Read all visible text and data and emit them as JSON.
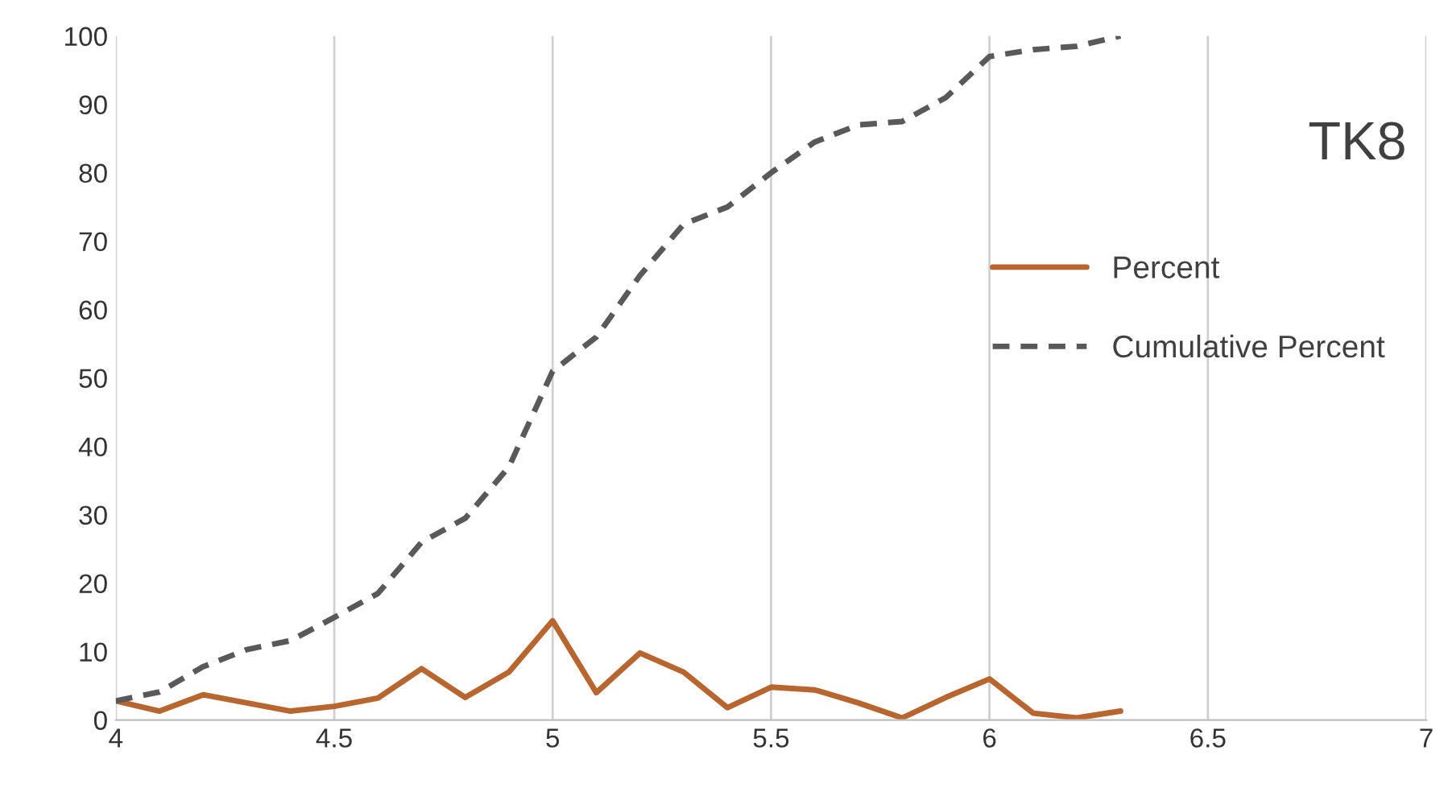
{
  "chart_data": {
    "type": "line",
    "x": [
      4.0,
      4.1,
      4.2,
      4.3,
      4.4,
      4.5,
      4.6,
      4.7,
      4.8,
      4.9,
      5.0,
      5.1,
      5.2,
      5.3,
      5.4,
      5.5,
      5.6,
      5.7,
      5.8,
      5.9,
      6.0,
      6.1,
      6.2,
      6.3
    ],
    "series": [
      {
        "name": "Percent",
        "color": "#b8652f",
        "marker": "none",
        "line_style": "solid",
        "values": [
          2.8,
          1.3,
          3.7,
          2.5,
          1.3,
          2.0,
          3.2,
          7.5,
          3.3,
          7.0,
          14.5,
          4.0,
          9.8,
          7.0,
          1.8,
          4.8,
          4.4,
          2.5,
          0.3,
          3.3,
          6.0,
          1.0,
          0.3,
          1.3
        ]
      },
      {
        "name": "Cumulative Percent",
        "color": "#595959",
        "marker": "none",
        "line_style": "dashed",
        "values": [
          2.8,
          4.1,
          7.8,
          10.3,
          11.6,
          15,
          18.5,
          26,
          29.5,
          37,
          51,
          56,
          65,
          72.5,
          75,
          80,
          84.5,
          87,
          87.5,
          91,
          97,
          98,
          98.5,
          100
        ]
      }
    ],
    "xlim": [
      4,
      7
    ],
    "xticks": [
      4,
      4.5,
      5,
      5.5,
      6,
      6.5,
      7
    ],
    "ylim": [
      0,
      100
    ],
    "yticks": [
      0,
      10,
      20,
      30,
      40,
      50,
      60,
      70,
      80,
      90,
      100
    ],
    "grid": "x",
    "legend": "right",
    "annotations": [
      "TK8"
    ]
  }
}
